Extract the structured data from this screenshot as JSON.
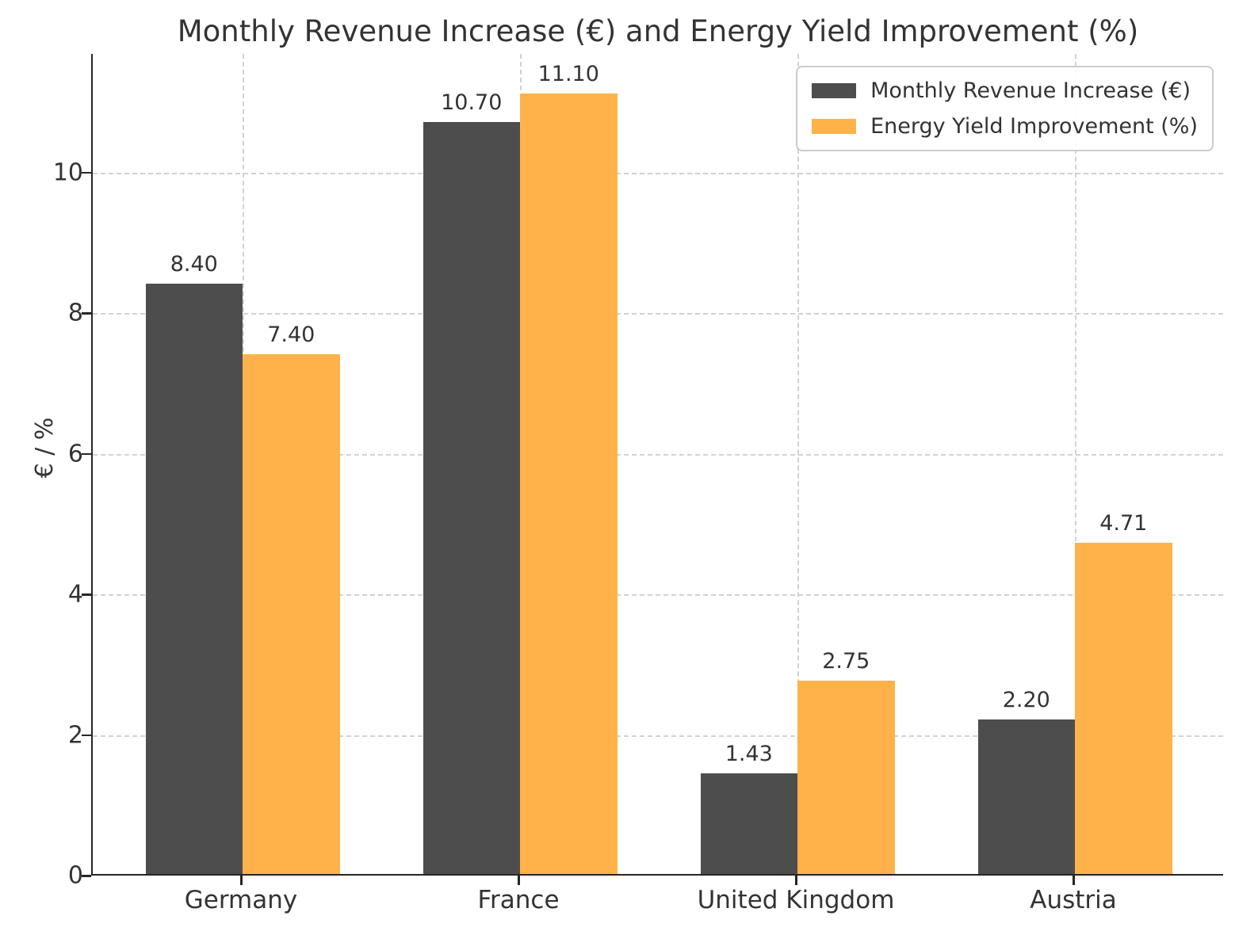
{
  "chart_data": {
    "type": "bar",
    "title": "Monthly Revenue Increase (€) and Energy Yield Improvement (%)",
    "categories": [
      "Germany",
      "France",
      "United Kingdom",
      "Austria"
    ],
    "series": [
      {
        "name": "Monthly Revenue Increase (€)",
        "color": "#4d4d4d",
        "values": [
          8.4,
          10.7,
          1.43,
          2.2
        ]
      },
      {
        "name": "Energy Yield Improvement (%)",
        "color": "#ffb24a",
        "values": [
          7.4,
          11.1,
          2.75,
          4.71
        ]
      }
    ],
    "xlabel": "",
    "ylabel": "€ / %",
    "yticks": [
      0,
      2,
      4,
      6,
      8,
      10
    ],
    "ylim": [
      0,
      11.69
    ],
    "grid": true,
    "grid_style": "dashed",
    "legend_position": "upper right",
    "value_labels": true,
    "value_label_decimals": 2,
    "bar_width_units": 0.35,
    "x_pad_units": 0.54
  }
}
